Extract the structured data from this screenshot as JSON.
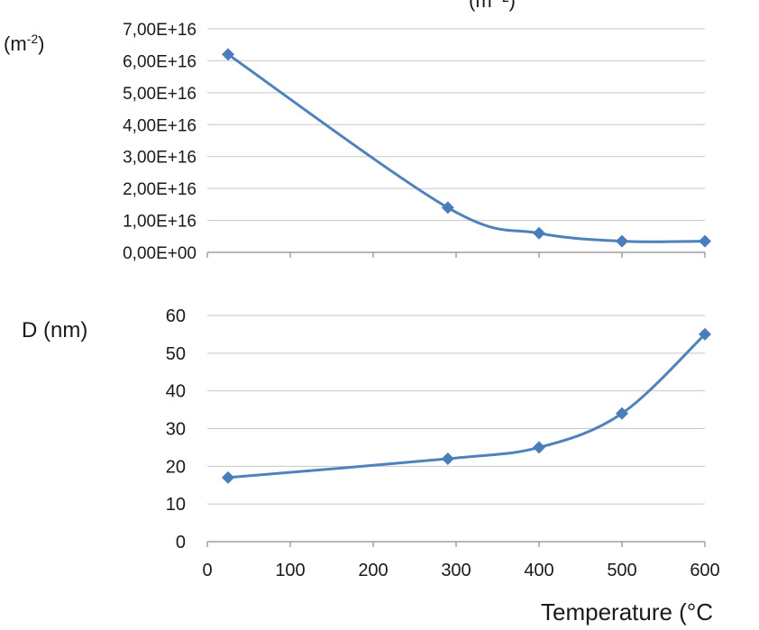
{
  "chart_data": [
    {
      "type": "line",
      "title": "",
      "title_fragment": "(m⁻²)",
      "ylabel": "(m⁻²)",
      "ylabel_base": "(m",
      "ylabel_sup": "-2",
      "ylabel_close": ")",
      "xlabel": "",
      "x": [
        25,
        290,
        400,
        500,
        600
      ],
      "y": [
        6.2e+16,
        1.4e+16,
        6000000000000000.0,
        3500000000000000.0,
        3500000000000000.0
      ],
      "ylim": [
        0,
        7e+16
      ],
      "y_tick_labels": [
        "0,00E+00",
        "1,00E+16",
        "2,00E+16",
        "3,00E+16",
        "4,00E+16",
        "5,00E+16",
        "6,00E+16",
        "7,00E+16"
      ],
      "xlim": [
        0,
        600
      ],
      "grid": true,
      "marker": "diamond",
      "line_color": "#4F81BD",
      "marker_color": "#4A7EBB"
    },
    {
      "type": "line",
      "ylabel": "D (nm)",
      "xlabel": "Temperature (°C",
      "x": [
        25,
        290,
        400,
        500,
        600
      ],
      "y": [
        17,
        22,
        25,
        34,
        55
      ],
      "ylim": [
        0,
        60
      ],
      "y_tick_labels": [
        "0",
        "10",
        "20",
        "30",
        "40",
        "50",
        "60"
      ],
      "xlim": [
        0,
        600
      ],
      "x_tick_labels": [
        "0",
        "100",
        "200",
        "300",
        "400",
        "500",
        "600"
      ],
      "grid": true,
      "marker": "diamond",
      "line_color": "#4F81BD",
      "marker_color": "#4A7EBB"
    }
  ]
}
